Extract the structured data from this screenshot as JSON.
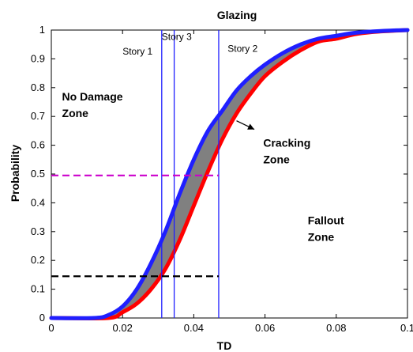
{
  "chart_data": {
    "type": "line",
    "title": "Glazing",
    "xlabel": "TD",
    "ylabel": "Probability",
    "xlim": [
      0,
      0.1
    ],
    "ylim": [
      0,
      1
    ],
    "x_ticks": [
      0,
      0.02,
      0.04,
      0.06,
      0.08,
      0.1
    ],
    "x_tick_labels": [
      "0",
      "0.02",
      "0.04",
      "0.06",
      "0.08",
      "0.1"
    ],
    "y_ticks": [
      0,
      0.1,
      0.2,
      0.3,
      0.4,
      0.5,
      0.6,
      0.7,
      0.8,
      0.9,
      1
    ],
    "y_tick_labels": [
      "0",
      "0.1",
      "0.2",
      "0.3",
      "0.4",
      "0.5",
      "0.6",
      "0.7",
      "0.8",
      "0.9",
      "1"
    ],
    "grid": false,
    "series": [
      {
        "color": "#1f1fff",
        "x": [
          0,
          0.012,
          0.016,
          0.02,
          0.024,
          0.028,
          0.032,
          0.036,
          0.04,
          0.044,
          0.048,
          0.052,
          0.056,
          0.06,
          0.065,
          0.07,
          0.075,
          0.08,
          0.085,
          0.09,
          0.095,
          0.1
        ],
        "y": [
          0,
          0,
          0.01,
          0.04,
          0.1,
          0.19,
          0.3,
          0.43,
          0.55,
          0.65,
          0.72,
          0.79,
          0.84,
          0.88,
          0.92,
          0.95,
          0.97,
          0.98,
          0.99,
          0.995,
          0.998,
          1.0
        ]
      },
      {
        "color": "#ff0000",
        "x": [
          0,
          0.016,
          0.02,
          0.024,
          0.028,
          0.032,
          0.036,
          0.04,
          0.044,
          0.048,
          0.052,
          0.056,
          0.06,
          0.065,
          0.07,
          0.075,
          0.08,
          0.085,
          0.09,
          0.095,
          0.1
        ],
        "y": [
          0,
          0,
          0.02,
          0.05,
          0.1,
          0.17,
          0.27,
          0.39,
          0.51,
          0.62,
          0.71,
          0.78,
          0.84,
          0.89,
          0.93,
          0.96,
          0.97,
          0.985,
          0.993,
          0.997,
          1.0
        ]
      }
    ],
    "fill_between": {
      "color": "#808080"
    },
    "vertical_lines": [
      {
        "x": 0.031,
        "label": "Story 1",
        "label_x": 0.02,
        "label_y": 0.915,
        "color": "#1f1fff"
      },
      {
        "x": 0.0345,
        "label": "Story 3",
        "label_x": 0.031,
        "label_y": 0.965,
        "color": "#1f1fff"
      },
      {
        "x": 0.047,
        "label": "Story 2",
        "label_x": 0.0495,
        "label_y": 0.925,
        "color": "#1f1fff"
      }
    ],
    "horizontal_lines": [
      {
        "y": 0.495,
        "x_from": 0,
        "x_to": 0.047,
        "color": "#cc00cc",
        "dashed": true
      },
      {
        "y": 0.145,
        "x_from": 0,
        "x_to": 0.047,
        "color": "#000000",
        "dashed": true
      }
    ],
    "annotations": [
      {
        "lines": [
          "No Damage",
          "Zone"
        ],
        "x": 0.003,
        "y": 0.755
      },
      {
        "lines": [
          "Cracking",
          "Zone"
        ],
        "x": 0.0595,
        "y": 0.595
      },
      {
        "lines": [
          "Fallout",
          "Zone"
        ],
        "x": 0.072,
        "y": 0.325
      }
    ],
    "arrow": {
      "from": [
        0.052,
        0.685
      ],
      "to": [
        0.057,
        0.655
      ]
    }
  }
}
